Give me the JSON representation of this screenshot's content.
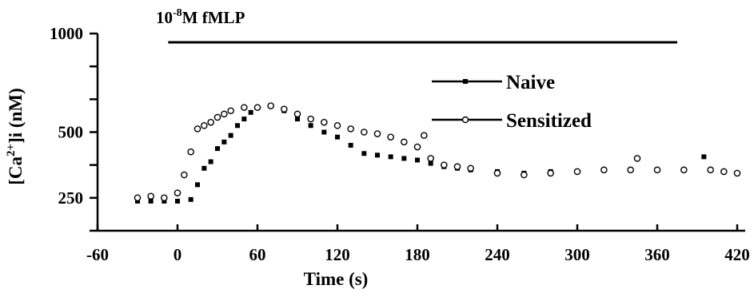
{
  "chart_data": {
    "type": "scatter",
    "title": "",
    "xlabel": "Time (s)",
    "ylabel_parts": {
      "pre": "[Ca",
      "sup": "2+",
      "post": "]i (nM)"
    },
    "x_ticks": [
      -60,
      0,
      60,
      120,
      180,
      240,
      300,
      360,
      420
    ],
    "x_tick_labels": [
      "-60",
      "0",
      "60",
      "120",
      "180",
      "240",
      "300",
      "360",
      "420"
    ],
    "xlim": [
      -60,
      420
    ],
    "y_tick_labels": {
      "1000": "1000",
      "500": "500",
      "250": "250"
    },
    "y_tick_positions": [
      0,
      1,
      2,
      3,
      4,
      5,
      6
    ],
    "ylim_index": [
      0,
      6
    ],
    "stimulus": {
      "label_base": "10",
      "label_exp": "-8",
      "label_rest": "M fMLP",
      "x_start": -7,
      "x_end": 375
    },
    "legend": {
      "placement": "upper right",
      "entries": [
        "Naive",
        "Sensitized"
      ]
    },
    "series": [
      {
        "name": "Naive",
        "marker": "filled-square",
        "points": [
          [
            -30,
            0.9
          ],
          [
            -20,
            0.9
          ],
          [
            -10,
            0.9
          ],
          [
            0,
            0.9
          ],
          [
            10,
            0.95
          ],
          [
            15,
            1.4
          ],
          [
            20,
            1.9
          ],
          [
            25,
            2.1
          ],
          [
            30,
            2.5
          ],
          [
            35,
            2.7
          ],
          [
            40,
            2.9
          ],
          [
            45,
            3.2
          ],
          [
            50,
            3.4
          ],
          [
            55,
            3.6
          ],
          [
            60,
            3.75
          ],
          [
            70,
            3.8
          ],
          [
            80,
            3.65
          ],
          [
            90,
            3.4
          ],
          [
            100,
            3.2
          ],
          [
            110,
            3.0
          ],
          [
            120,
            2.85
          ],
          [
            130,
            2.6
          ],
          [
            140,
            2.35
          ],
          [
            150,
            2.3
          ],
          [
            160,
            2.25
          ],
          [
            170,
            2.2
          ],
          [
            180,
            2.15
          ],
          [
            190,
            2.05
          ],
          [
            200,
            1.95
          ],
          [
            210,
            1.9
          ],
          [
            220,
            1.85
          ],
          [
            240,
            1.8
          ],
          [
            260,
            1.75
          ],
          [
            280,
            1.8
          ],
          [
            300,
            1.8
          ],
          [
            320,
            1.85
          ],
          [
            340,
            1.85
          ],
          [
            360,
            1.85
          ],
          [
            380,
            1.85
          ],
          [
            395,
            2.25
          ],
          [
            400,
            1.85
          ],
          [
            410,
            1.8
          ],
          [
            420,
            1.75
          ]
        ]
      },
      {
        "name": "Sensitized",
        "marker": "open-circle",
        "points": [
          [
            -30,
            1.0
          ],
          [
            -20,
            1.05
          ],
          [
            -10,
            1.0
          ],
          [
            0,
            1.15
          ],
          [
            5,
            1.7
          ],
          [
            10,
            2.4
          ],
          [
            15,
            3.1
          ],
          [
            20,
            3.2
          ],
          [
            25,
            3.3
          ],
          [
            30,
            3.45
          ],
          [
            35,
            3.55
          ],
          [
            40,
            3.65
          ],
          [
            50,
            3.75
          ],
          [
            60,
            3.75
          ],
          [
            70,
            3.8
          ],
          [
            80,
            3.7
          ],
          [
            90,
            3.55
          ],
          [
            100,
            3.4
          ],
          [
            110,
            3.3
          ],
          [
            120,
            3.2
          ],
          [
            130,
            3.1
          ],
          [
            140,
            3.0
          ],
          [
            150,
            2.95
          ],
          [
            160,
            2.85
          ],
          [
            170,
            2.7
          ],
          [
            180,
            2.55
          ],
          [
            185,
            2.9
          ],
          [
            190,
            2.2
          ],
          [
            200,
            2.0
          ],
          [
            210,
            1.95
          ],
          [
            220,
            1.9
          ],
          [
            240,
            1.75
          ],
          [
            260,
            1.7
          ],
          [
            280,
            1.75
          ],
          [
            300,
            1.8
          ],
          [
            320,
            1.85
          ],
          [
            340,
            1.85
          ],
          [
            345,
            2.2
          ],
          [
            360,
            1.85
          ],
          [
            380,
            1.85
          ],
          [
            400,
            1.85
          ],
          [
            410,
            1.8
          ],
          [
            420,
            1.75
          ]
        ]
      }
    ]
  }
}
